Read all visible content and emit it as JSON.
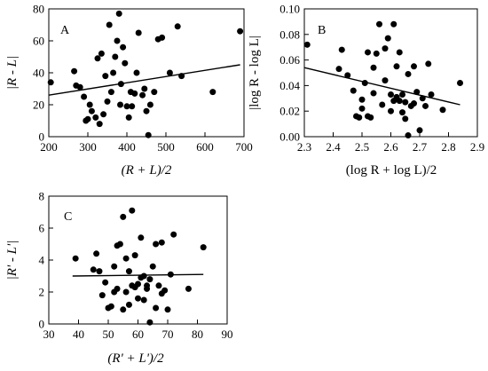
{
  "chart_data": [
    {
      "panel": "A",
      "type": "scatter",
      "xlabel": "(R + L)/2",
      "ylabel": "|R - L|",
      "xlim": [
        200,
        700
      ],
      "ylim": [
        0,
        80
      ],
      "xticks": [
        200,
        300,
        400,
        500,
        600,
        700
      ],
      "yticks": [
        0,
        20,
        40,
        60,
        80
      ],
      "grid": false,
      "x": [
        205,
        265,
        270,
        280,
        290,
        295,
        300,
        305,
        310,
        320,
        325,
        330,
        335,
        340,
        345,
        350,
        355,
        360,
        365,
        370,
        375,
        380,
        383,
        385,
        390,
        395,
        400,
        405,
        410,
        413,
        420,
        425,
        430,
        440,
        445,
        450,
        455,
        460,
        470,
        480,
        490,
        510,
        530,
        540,
        620,
        690
      ],
      "y": [
        34,
        41,
        32,
        31,
        25,
        10,
        11,
        20,
        16,
        12,
        49,
        8,
        52,
        14,
        38,
        22,
        70,
        28,
        40,
        50,
        60,
        77,
        20,
        33,
        56,
        46,
        19,
        12,
        28,
        19,
        27,
        40,
        65,
        26,
        30,
        16,
        1,
        20,
        28,
        61,
        62,
        40,
        69,
        38,
        28,
        66
      ],
      "trendline": {
        "x": [
          200,
          690
        ],
        "y": [
          26,
          45
        ]
      }
    },
    {
      "panel": "B",
      "type": "scatter",
      "xlabel": "(log R + log L)/2",
      "ylabel": "|log R - log L|",
      "xlim": [
        2.3,
        2.9
      ],
      "ylim": [
        0,
        0.1
      ],
      "xticks": [
        "2.3",
        "2.4",
        "2.5",
        "2.6",
        "2.7",
        "2.8",
        "2.9"
      ],
      "yticks": [
        "0.00",
        "0.02",
        "0.04",
        "0.06",
        "0.08",
        "0.10"
      ],
      "grid": false,
      "x": [
        2.31,
        2.42,
        2.43,
        2.45,
        2.47,
        2.48,
        2.49,
        2.5,
        2.5,
        2.51,
        2.52,
        2.52,
        2.53,
        2.54,
        2.54,
        2.55,
        2.56,
        2.57,
        2.58,
        2.58,
        2.59,
        2.6,
        2.6,
        2.61,
        2.61,
        2.62,
        2.62,
        2.63,
        2.63,
        2.64,
        2.64,
        2.65,
        2.65,
        2.66,
        2.66,
        2.67,
        2.68,
        2.68,
        2.69,
        2.7,
        2.71,
        2.72,
        2.73,
        2.74,
        2.78,
        2.84
      ],
      "y": [
        0.072,
        0.053,
        0.068,
        0.048,
        0.036,
        0.016,
        0.015,
        0.022,
        0.029,
        0.042,
        0.016,
        0.066,
        0.015,
        0.034,
        0.054,
        0.065,
        0.088,
        0.025,
        0.069,
        0.044,
        0.077,
        0.033,
        0.02,
        0.088,
        0.028,
        0.055,
        0.031,
        0.028,
        0.066,
        0.033,
        0.019,
        0.014,
        0.027,
        0.049,
        0.001,
        0.024,
        0.026,
        0.055,
        0.035,
        0.005,
        0.03,
        0.024,
        0.057,
        0.033,
        0.021,
        0.042
      ],
      "trendline": {
        "x": [
          2.3,
          2.84
        ],
        "y": [
          0.054,
          0.025
        ]
      }
    },
    {
      "panel": "C",
      "type": "scatter",
      "xlabel": "(R' + L')/2",
      "ylabel": "|R' - L'|",
      "xlim": [
        30,
        90
      ],
      "ylim": [
        0,
        8
      ],
      "xticks": [
        30,
        40,
        50,
        60,
        70,
        80,
        90
      ],
      "yticks": [
        0,
        2,
        4,
        6,
        8
      ],
      "grid": false,
      "x": [
        39,
        45,
        46,
        47,
        48,
        49,
        50,
        51,
        52,
        52,
        53,
        53,
        54,
        55,
        55,
        56,
        56,
        57,
        57,
        58,
        58,
        59,
        59,
        60,
        60,
        61,
        61,
        62,
        62,
        63,
        63,
        64,
        64,
        65,
        66,
        66,
        67,
        68,
        68,
        69,
        70,
        71,
        72,
        77,
        82
      ],
      "y": [
        4.1,
        3.4,
        4.4,
        3.3,
        1.8,
        2.6,
        1.0,
        1.1,
        2.0,
        3.6,
        2.2,
        4.9,
        5.0,
        0.9,
        6.7,
        2.0,
        4.1,
        3.3,
        1.2,
        7.1,
        2.4,
        2.3,
        4.3,
        2.5,
        1.6,
        2.9,
        5.4,
        3.0,
        1.5,
        2.4,
        2.2,
        0.1,
        2.8,
        3.6,
        1.0,
        5.0,
        2.4,
        5.1,
        1.9,
        2.1,
        0.9,
        3.1,
        5.6,
        2.2,
        4.8
      ],
      "trendline": {
        "x": [
          38,
          82
        ],
        "y": [
          3.0,
          3.1
        ]
      }
    }
  ]
}
